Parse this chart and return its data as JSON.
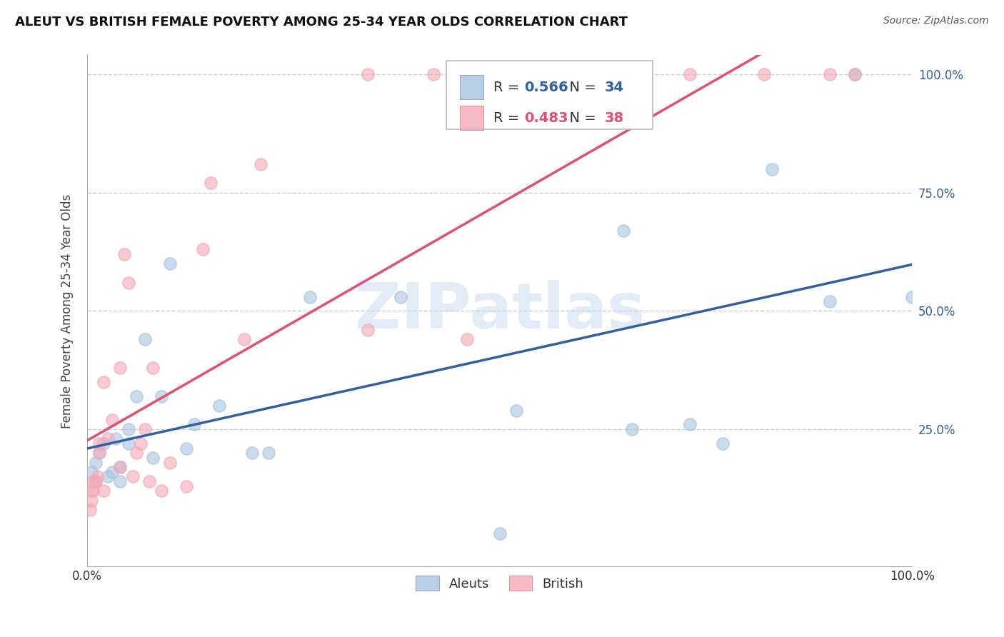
{
  "title": "ALEUT VS BRITISH FEMALE POVERTY AMONG 25-34 YEAR OLDS CORRELATION CHART",
  "source": "Source: ZipAtlas.com",
  "ylabel": "Female Poverty Among 25-34 Year Olds",
  "watermark": "ZIPatlas",
  "legend_aleut_R": "0.566",
  "legend_aleut_N": "34",
  "legend_british_R": "0.483",
  "legend_british_N": "38",
  "aleut_color": "#A8C4E0",
  "british_color": "#F4A8B8",
  "aleut_line_color": "#3060A0",
  "british_line_color": "#E05070",
  "background_color": "#FFFFFF",
  "grid_color": "#CCCCCC",
  "aleut_x": [
    0.005,
    0.01,
    0.01,
    0.015,
    0.02,
    0.025,
    0.03,
    0.035,
    0.04,
    0.04,
    0.05,
    0.05,
    0.06,
    0.07,
    0.08,
    0.09,
    0.1,
    0.12,
    0.13,
    0.16,
    0.2,
    0.22,
    0.27,
    0.38,
    0.5,
    0.52,
    0.65,
    0.66,
    0.73,
    0.77,
    0.83,
    0.9,
    0.93,
    1.0
  ],
  "aleut_y": [
    0.16,
    0.14,
    0.18,
    0.2,
    0.22,
    0.15,
    0.16,
    0.23,
    0.14,
    0.17,
    0.22,
    0.25,
    0.32,
    0.44,
    0.19,
    0.32,
    0.6,
    0.21,
    0.26,
    0.3,
    0.2,
    0.2,
    0.53,
    0.53,
    0.03,
    0.29,
    0.67,
    0.25,
    0.26,
    0.22,
    0.8,
    0.52,
    1.0,
    0.53
  ],
  "british_x": [
    0.003,
    0.005,
    0.005,
    0.007,
    0.008,
    0.01,
    0.012,
    0.015,
    0.015,
    0.02,
    0.02,
    0.025,
    0.03,
    0.04,
    0.04,
    0.045,
    0.05,
    0.055,
    0.06,
    0.065,
    0.07,
    0.075,
    0.08,
    0.09,
    0.1,
    0.12,
    0.14,
    0.15,
    0.19,
    0.21,
    0.34,
    0.34,
    0.42,
    0.46,
    0.73,
    0.82,
    0.9,
    0.93
  ],
  "british_y": [
    0.08,
    0.1,
    0.12,
    0.12,
    0.14,
    0.14,
    0.15,
    0.2,
    0.22,
    0.12,
    0.35,
    0.23,
    0.27,
    0.38,
    0.17,
    0.62,
    0.56,
    0.15,
    0.2,
    0.22,
    0.25,
    0.14,
    0.38,
    0.12,
    0.18,
    0.13,
    0.63,
    0.77,
    0.44,
    0.81,
    0.46,
    1.0,
    1.0,
    0.44,
    1.0,
    1.0,
    1.0,
    1.0
  ],
  "xlim": [
    0.0,
    1.0
  ],
  "ylim": [
    -0.04,
    1.04
  ],
  "xtick_positions": [
    0.0,
    1.0
  ],
  "xtick_labels": [
    "0.0%",
    "100.0%"
  ],
  "ytick_positions": [
    0.25,
    0.5,
    0.75,
    1.0
  ],
  "ytick_labels": [
    "25.0%",
    "50.0%",
    "75.0%",
    "100.0%"
  ]
}
